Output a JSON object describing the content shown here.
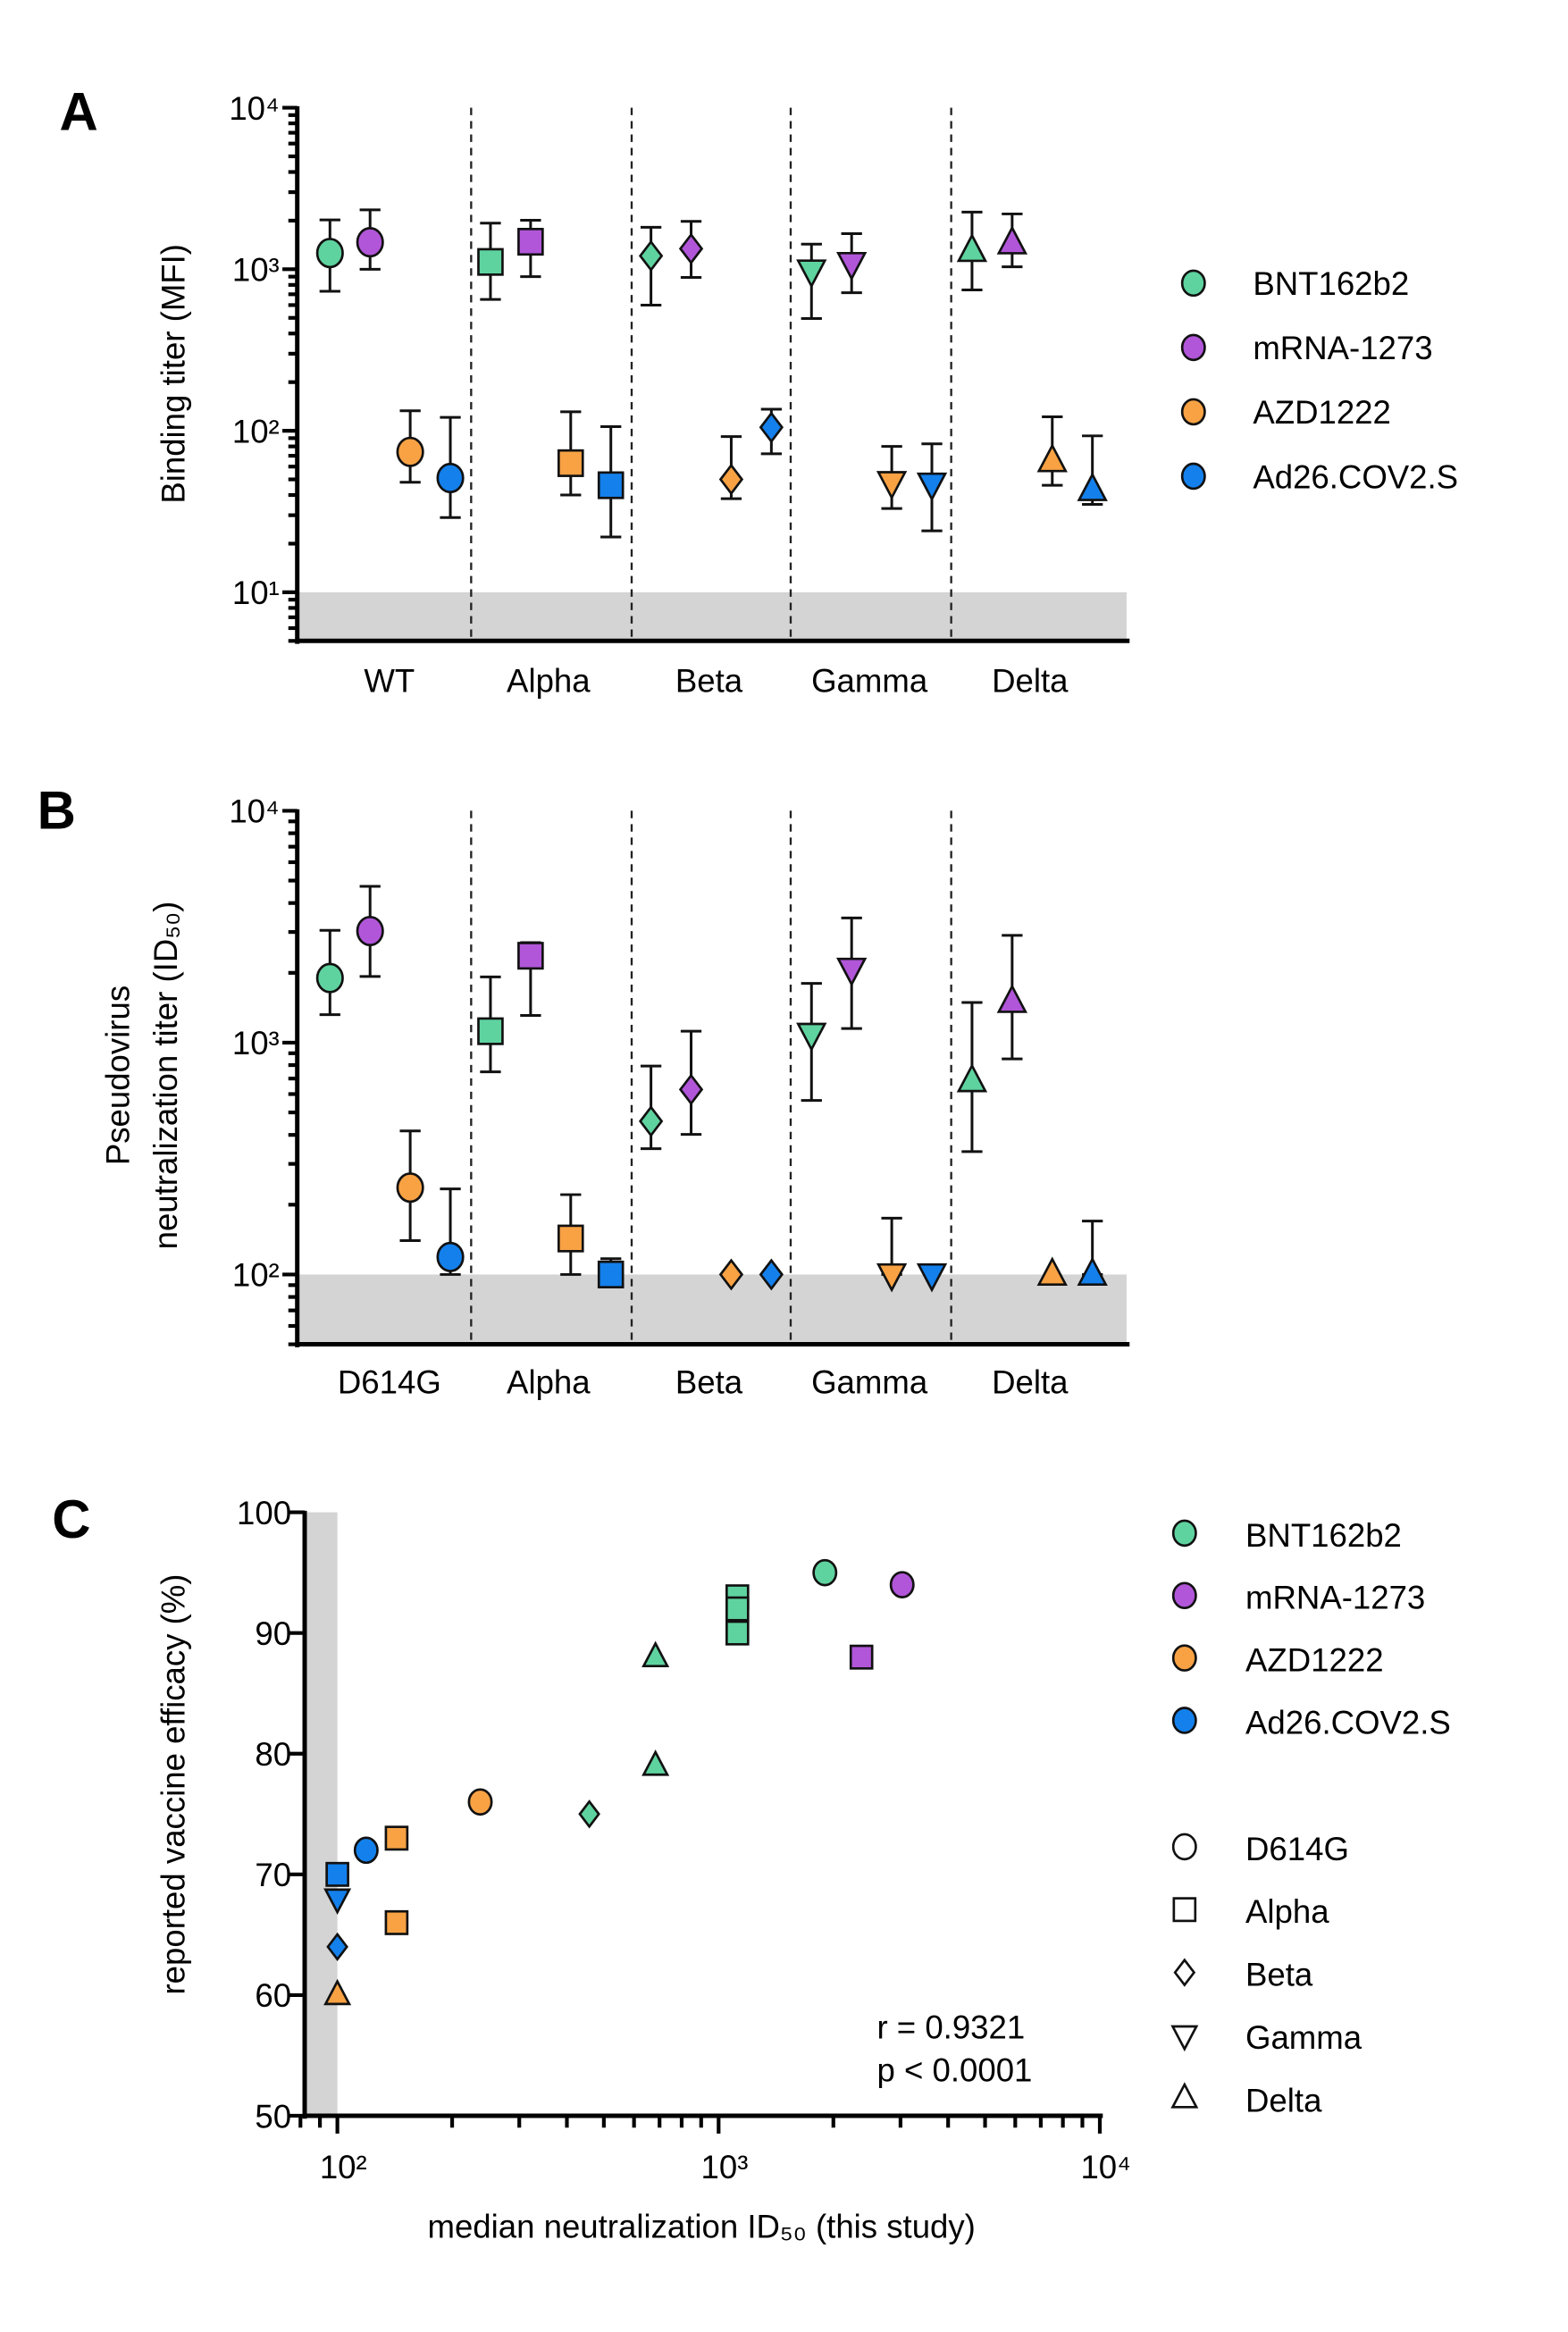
{
  "colors": {
    "BNT162b2": "#5fd39f",
    "mRNA-1273": "#b156d9",
    "AZD1222": "#f8a244",
    "Ad26.COV2.S": "#1480ec"
  },
  "chart_data": [
    {
      "panel_label": "A",
      "type": "scatter",
      "ylabel": "Binding titer (MFI)",
      "yscale": "log",
      "ylim": [
        5,
        10000
      ],
      "yticks": [
        "10¹",
        "10²",
        "10³",
        "10⁴"
      ],
      "shaded_below": 10,
      "categories": [
        "WT",
        "Alpha",
        "Beta",
        "Gamma",
        "Delta"
      ],
      "marker_shapes": [
        "circle",
        "square",
        "diamond",
        "triangle-down",
        "triangle-up"
      ],
      "legend_position": "right",
      "series": [
        {
          "name": "BNT162b2",
          "median": [
            1260,
            1110,
            1210,
            980,
            1300
          ],
          "lower": [
            730,
            650,
            600,
            495,
            745
          ],
          "upper": [
            2020,
            1930,
            1820,
            1430,
            2260
          ]
        },
        {
          "name": "mRNA-1273",
          "median": [
            1470,
            1480,
            1340,
            1090,
            1450
          ],
          "lower": [
            1000,
            900,
            890,
            716,
            1035
          ],
          "upper": [
            2330,
            2010,
            1980,
            1660,
            2200
          ]
        },
        {
          "name": "AZD1222",
          "median": [
            74,
            63,
            50,
            48,
            65
          ],
          "lower": [
            48,
            40,
            38,
            33,
            46
          ],
          "upper": [
            133,
            131,
            92,
            80,
            122
          ]
        },
        {
          "name": "Ad26.COV2.S",
          "median": [
            51,
            46,
            105,
            47,
            43
          ],
          "lower": [
            29,
            22,
            72,
            24,
            35
          ],
          "upper": [
            121,
            106,
            136,
            83,
            93
          ]
        }
      ]
    },
    {
      "panel_label": "B",
      "type": "scatter",
      "ylabel_lines": [
        "Pseudovirus",
        "neutralization titer (ID₅₀)"
      ],
      "yscale": "log",
      "ylim": [
        50,
        10000
      ],
      "yticks": [
        "10²",
        "10³",
        "10⁴"
      ],
      "shaded_below": 100,
      "categories": [
        "D614G",
        "Alpha",
        "Beta",
        "Gamma",
        "Delta"
      ],
      "marker_shapes": [
        "circle",
        "square",
        "diamond",
        "triangle-down",
        "triangle-up"
      ],
      "series": [
        {
          "name": "BNT162b2",
          "median": [
            1900,
            1120,
            458,
            1090,
            683
          ],
          "lower": [
            1320,
            748,
            349,
            563,
            339
          ],
          "upper": [
            3050,
            1920,
            793,
            1800,
            1490
          ]
        },
        {
          "name": "mRNA-1273",
          "median": [
            3030,
            2370,
            628,
            2080,
            1500
          ],
          "lower": [
            1930,
            1310,
            402,
            1150,
            851
          ],
          "upper": [
            4720,
            2700,
            1120,
            3450,
            2900
          ]
        },
        {
          "name": "AZD1222",
          "median": [
            237,
            143,
            100,
            100,
            100
          ],
          "lower": [
            140,
            100,
            100,
            100,
            100
          ],
          "upper": [
            416,
            221,
            100,
            175,
            100
          ]
        },
        {
          "name": "Ad26.COV2.S",
          "median": [
            119,
            100,
            100,
            100,
            100
          ],
          "lower": [
            100,
            100,
            100,
            100,
            100
          ],
          "upper": [
            234,
            117,
            100,
            100,
            170
          ]
        }
      ]
    },
    {
      "panel_label": "C",
      "type": "scatter",
      "xlabel": "median neutralization ID₅₀ (this study)",
      "ylabel": "reported vaccine efficacy (%)",
      "xscale": "log",
      "xlim": [
        80,
        10000
      ],
      "ylim": [
        50,
        100
      ],
      "xticks": [
        "10²",
        "10³",
        "10⁴"
      ],
      "yticks": [
        "50",
        "60",
        "70",
        "80",
        "90",
        "100"
      ],
      "shaded_left_of": 100,
      "annotation": [
        "r = 0.9321",
        "p < 0.0001"
      ],
      "legend_vaccines": [
        "BNT162b2",
        "mRNA-1273",
        "AZD1222",
        "Ad26.COV2.S"
      ],
      "legend_variants": [
        {
          "label": "D614G",
          "shape": "circle"
        },
        {
          "label": "Alpha",
          "shape": "square"
        },
        {
          "label": "Beta",
          "shape": "diamond"
        },
        {
          "label": "Gamma",
          "shape": "triangle-down"
        },
        {
          "label": "Delta",
          "shape": "triangle-up"
        }
      ],
      "points": [
        {
          "vaccine": "BNT162b2",
          "variant": "D614G",
          "x": 1900,
          "y": 95
        },
        {
          "vaccine": "mRNA-1273",
          "variant": "D614G",
          "x": 3030,
          "y": 94
        },
        {
          "vaccine": "BNT162b2",
          "variant": "Alpha",
          "x": 1120,
          "y": 93
        },
        {
          "vaccine": "BNT162b2",
          "variant": "Alpha",
          "x": 1120,
          "y": 92
        },
        {
          "vaccine": "BNT162b2",
          "variant": "Alpha",
          "x": 1120,
          "y": 90
        },
        {
          "vaccine": "mRNA-1273",
          "variant": "Alpha",
          "x": 2370,
          "y": 88
        },
        {
          "vaccine": "BNT162b2",
          "variant": "Delta",
          "x": 683,
          "y": 88
        },
        {
          "vaccine": "BNT162b2",
          "variant": "Delta",
          "x": 683,
          "y": 79
        },
        {
          "vaccine": "BNT162b2",
          "variant": "Beta",
          "x": 458,
          "y": 75
        },
        {
          "vaccine": "AZD1222",
          "variant": "D614G",
          "x": 237,
          "y": 76
        },
        {
          "vaccine": "AZD1222",
          "variant": "Alpha",
          "x": 143,
          "y": 73
        },
        {
          "vaccine": "AZD1222",
          "variant": "Alpha",
          "x": 143,
          "y": 66
        },
        {
          "vaccine": "Ad26.COV2.S",
          "variant": "D614G",
          "x": 119,
          "y": 72
        },
        {
          "vaccine": "Ad26.COV2.S",
          "variant": "Alpha",
          "x": 100,
          "y": 70
        },
        {
          "vaccine": "Ad26.COV2.S",
          "variant": "Gamma",
          "x": 100,
          "y": 68
        },
        {
          "vaccine": "Ad26.COV2.S",
          "variant": "Beta",
          "x": 100,
          "y": 64
        },
        {
          "vaccine": "AZD1222",
          "variant": "Delta",
          "x": 100,
          "y": 60
        }
      ]
    }
  ]
}
